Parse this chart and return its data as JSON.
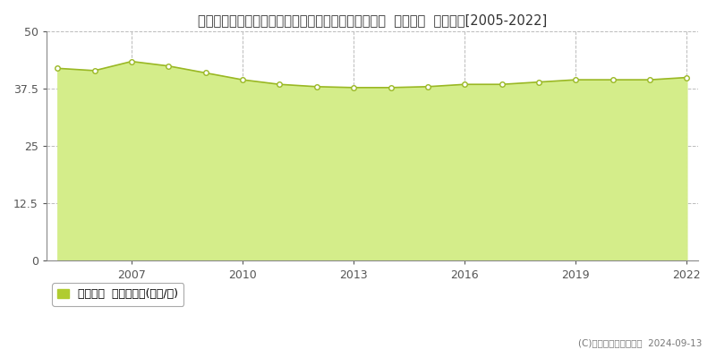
{
  "title": "東京都西多摩郡瑞穂町大字箱根ケ崎字狭山２９５番４  地価公示  地価推移[2005-2022]",
  "years": [
    2005,
    2006,
    2007,
    2008,
    2009,
    2010,
    2011,
    2012,
    2013,
    2014,
    2015,
    2016,
    2017,
    2018,
    2019,
    2020,
    2021,
    2022
  ],
  "values": [
    42.0,
    41.5,
    43.5,
    42.5,
    41.0,
    39.5,
    38.5,
    38.0,
    37.8,
    37.8,
    38.0,
    38.5,
    38.5,
    39.0,
    39.5,
    39.5,
    39.5,
    40.0
  ],
  "ylim": [
    0,
    50
  ],
  "yticks": [
    0,
    12.5,
    25,
    37.5,
    50
  ],
  "xticks": [
    2007,
    2010,
    2013,
    2016,
    2019,
    2022
  ],
  "line_color": "#9ab824",
  "fill_color": "#d4ed8a",
  "marker_color": "#9ab824",
  "background_color": "#ffffff",
  "plot_bg_color": "#ffffff",
  "grid_color": "#bbbbbb",
  "legend_label": "地価公示  平均坪単価(万円/坪)",
  "legend_marker_color": "#b0cc30",
  "copyright_text": "(C)土地価格ドットコム  2024-09-13",
  "title_fontsize": 10.5,
  "axis_fontsize": 9,
  "legend_fontsize": 9
}
